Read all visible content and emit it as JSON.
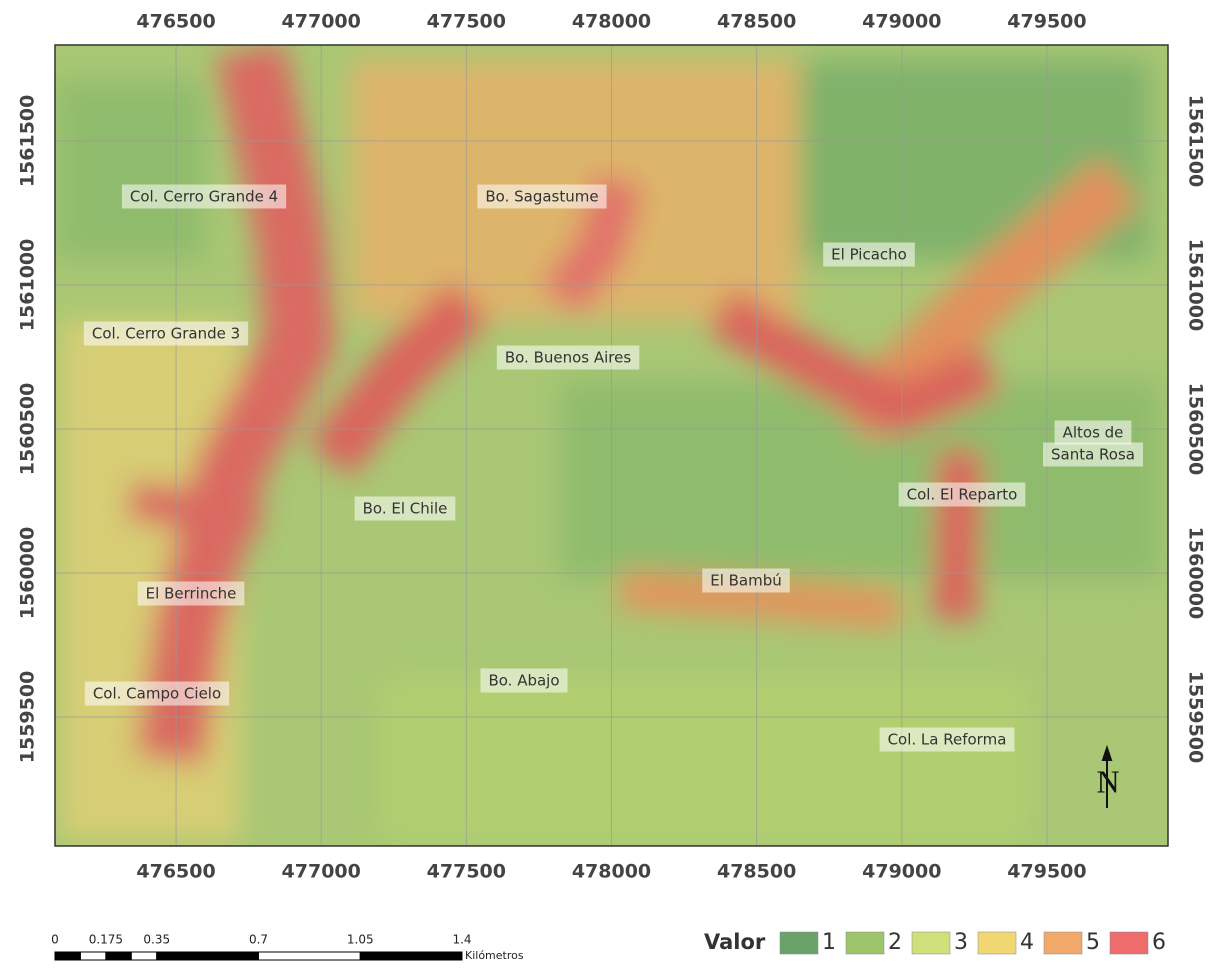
{
  "map": {
    "xlim": [
      476083,
      479917
    ],
    "ylim": [
      1559052,
      1561833
    ],
    "xticks": [
      476500,
      477000,
      477500,
      478000,
      478500,
      479000,
      479500
    ],
    "yticks": [
      1559500,
      1560000,
      1560500,
      1561000,
      1561500
    ],
    "places": [
      "Col. Cerro Grande 4",
      "Bo. Sagastume",
      "El Picacho",
      "Col. Cerro Grande 3",
      "Bo. Buenos Aires",
      "Altos de",
      "Santa Rosa",
      "Bo. El Chile",
      "Col. El Reparto",
      "El Bambú",
      "El Berrinche",
      "Col. Campo Cielo",
      "Bo. Abajo",
      "Col. La Reforma"
    ],
    "north": "N"
  },
  "scale_bar": {
    "ticks": [
      0,
      0.175,
      0.35,
      0.7,
      1.05,
      1.4
    ],
    "unit": "Kilómetros"
  },
  "legend": {
    "title": "Valor",
    "items": [
      {
        "label": "1",
        "color": "#6aa36a"
      },
      {
        "label": "2",
        "color": "#9cc56c"
      },
      {
        "label": "3",
        "color": "#cfe07a"
      },
      {
        "label": "4",
        "color": "#f1d772"
      },
      {
        "label": "5",
        "color": "#f0a96a"
      },
      {
        "label": "6",
        "color": "#ee6c6c"
      }
    ]
  }
}
